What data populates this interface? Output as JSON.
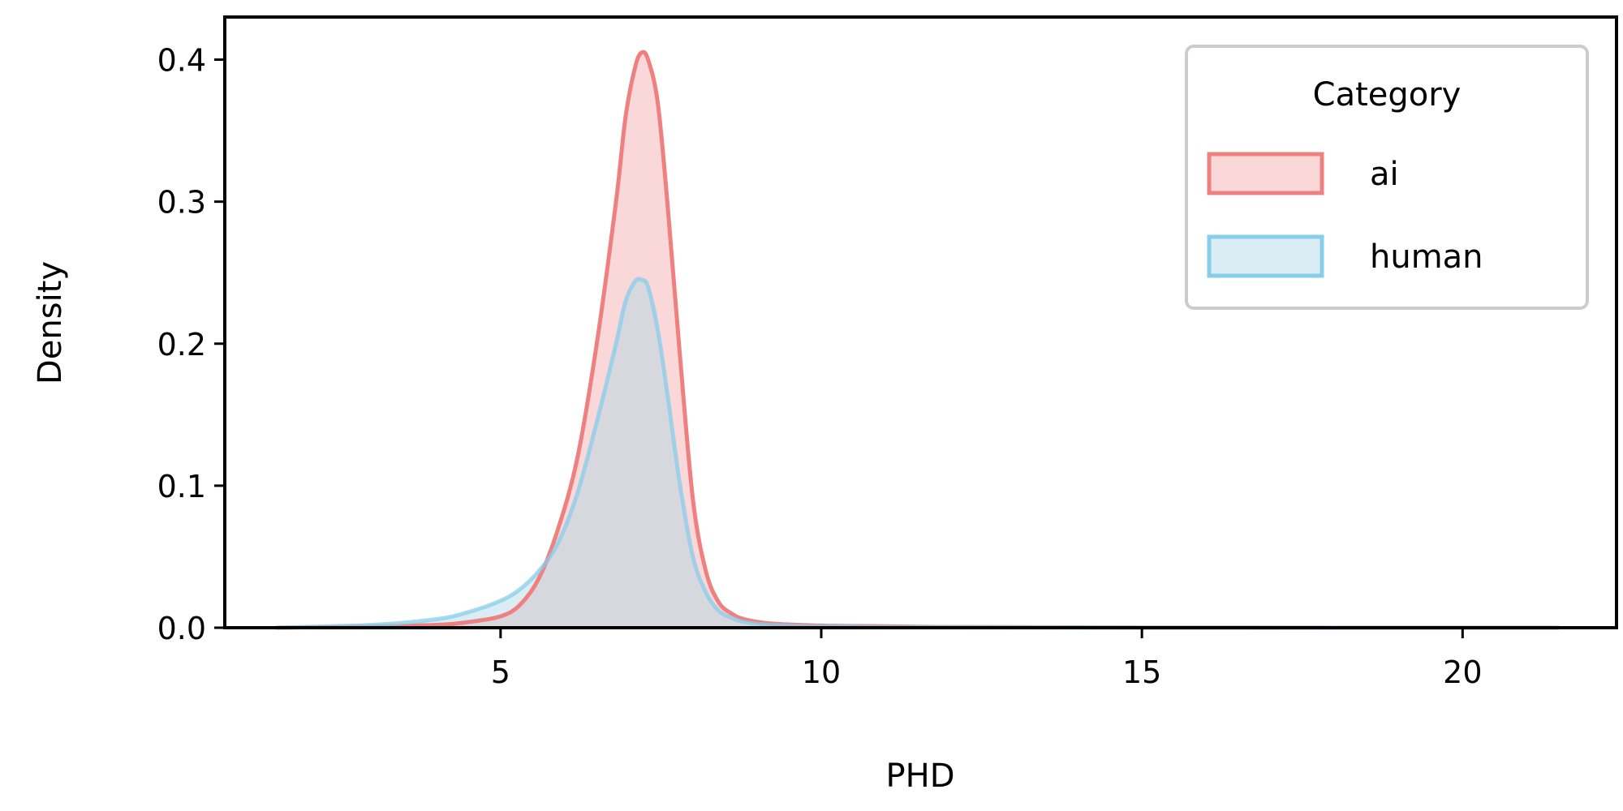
{
  "chart_data": {
    "type": "area",
    "title": "",
    "xlabel": "PHD",
    "ylabel": "Density",
    "xlim": [
      0.7,
      22.4
    ],
    "ylim": [
      0,
      0.43
    ],
    "x_ticks": [
      5,
      10,
      15,
      20
    ],
    "x_tick_labels": [
      "5",
      "10",
      "15",
      "20"
    ],
    "y_ticks": [
      0.0,
      0.1,
      0.2,
      0.3,
      0.4
    ],
    "y_tick_labels": [
      "0.0",
      "0.1",
      "0.2",
      "0.3",
      "0.4"
    ],
    "grid": false,
    "legend": {
      "title": "Category",
      "position": "top-right"
    },
    "series": [
      {
        "name": "ai",
        "line_color": "#ef8080",
        "fill_color": "#f4a6a8",
        "x": [
          1.5,
          3.0,
          4.0,
          4.5,
          5.0,
          5.3,
          5.6,
          5.9,
          6.2,
          6.5,
          6.8,
          6.95,
          7.1,
          7.2,
          7.3,
          7.45,
          7.6,
          7.8,
          8.0,
          8.2,
          8.4,
          8.6,
          8.8,
          9.2,
          10.0,
          11.0,
          12.0,
          15.0,
          20.0,
          21.5
        ],
        "y": [
          0.0,
          0.001,
          0.002,
          0.004,
          0.008,
          0.016,
          0.035,
          0.07,
          0.12,
          0.2,
          0.3,
          0.36,
          0.395,
          0.405,
          0.4,
          0.37,
          0.3,
          0.19,
          0.09,
          0.04,
          0.018,
          0.01,
          0.006,
          0.003,
          0.0015,
          0.001,
          0.0005,
          0.0001,
          0.0,
          0.0
        ]
      },
      {
        "name": "human",
        "line_color": "#87ceeb",
        "fill_color": "#add8e6",
        "x": [
          1.5,
          3.0,
          4.0,
          4.5,
          5.0,
          5.3,
          5.6,
          5.9,
          6.2,
          6.5,
          6.8,
          6.95,
          7.1,
          7.2,
          7.3,
          7.45,
          7.6,
          7.8,
          8.0,
          8.2,
          8.4,
          8.6,
          8.8,
          9.2,
          10.0,
          11.0,
          12.0,
          15.0,
          20.0,
          21.5
        ],
        "y": [
          0.0,
          0.002,
          0.006,
          0.011,
          0.019,
          0.027,
          0.04,
          0.06,
          0.095,
          0.145,
          0.2,
          0.23,
          0.244,
          0.245,
          0.24,
          0.21,
          0.165,
          0.1,
          0.05,
          0.025,
          0.012,
          0.007,
          0.004,
          0.002,
          0.001,
          0.0005,
          0.0003,
          0.0001,
          0.0,
          0.0
        ]
      }
    ]
  }
}
